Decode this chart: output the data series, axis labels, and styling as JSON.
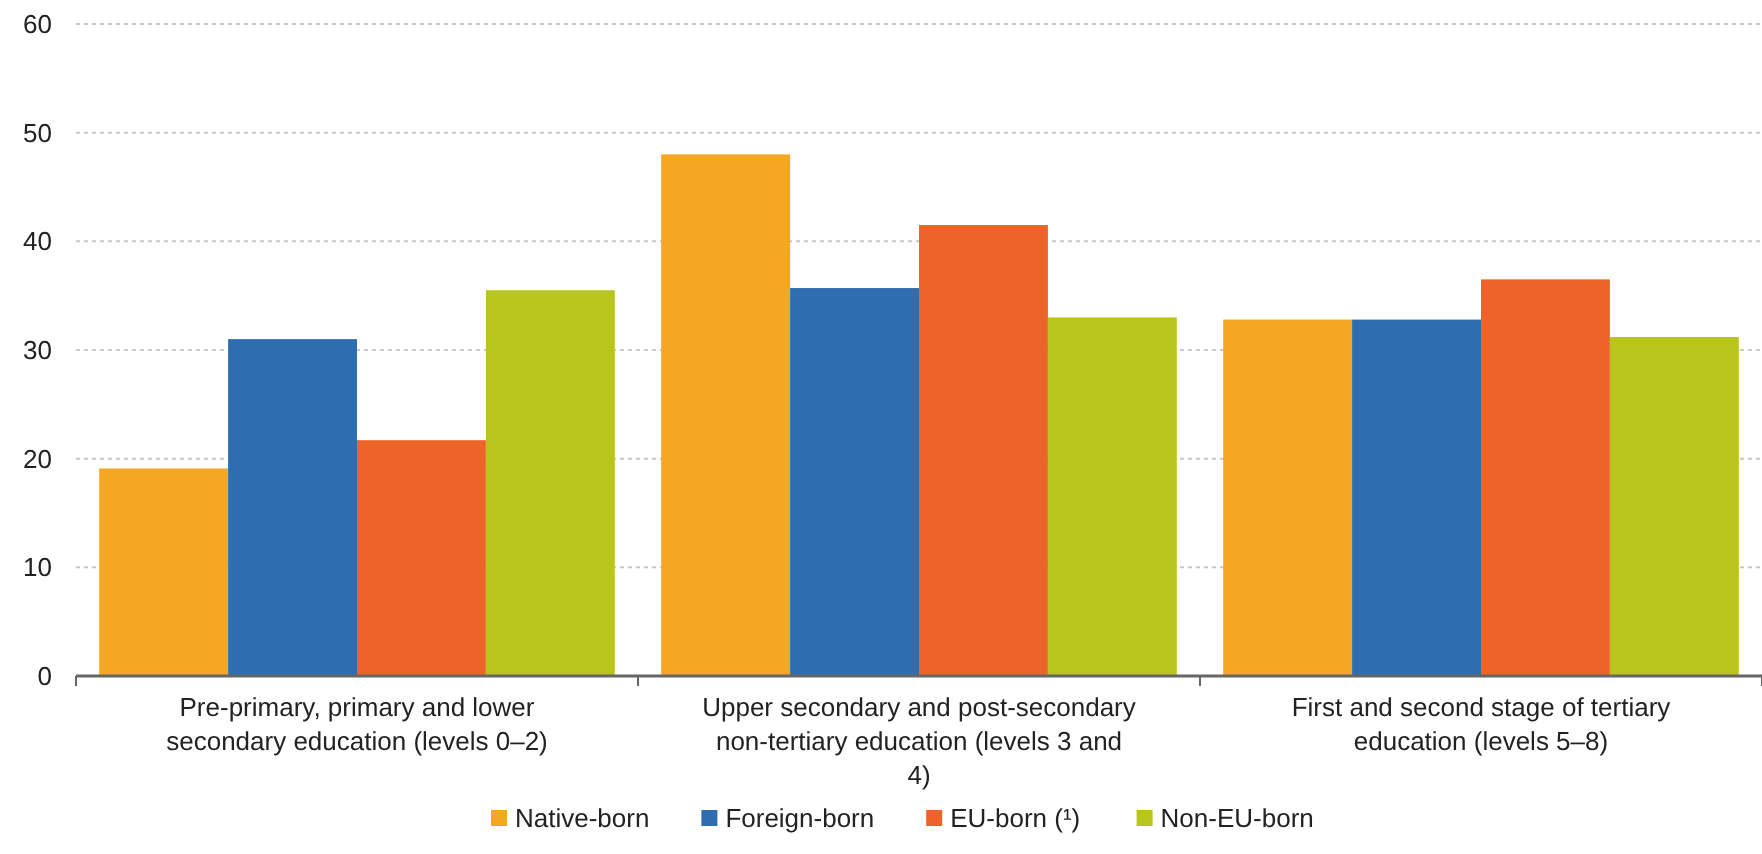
{
  "chart_data": {
    "type": "bar",
    "categories": [
      "Pre-primary, primary and lower secondary education (levels 0–2)",
      "Upper secondary and post-secondary non-tertiary education (levels 3 and 4)",
      "First and second stage of tertiary education (levels 5–8)"
    ],
    "series": [
      {
        "name": "Native-born",
        "color": "#f5a623",
        "values": [
          19.1,
          48.0,
          32.8
        ]
      },
      {
        "name": "Foreign-born",
        "color": "#2e6db0",
        "values": [
          31.0,
          35.7,
          32.8
        ]
      },
      {
        "name": "EU-born (¹)",
        "color": "#ec6427",
        "values": [
          21.7,
          41.5,
          36.5
        ]
      },
      {
        "name": "Non-EU-born",
        "color": "#b8c51c",
        "values": [
          35.5,
          33.0,
          31.2
        ]
      }
    ],
    "ylim": [
      0,
      60
    ],
    "yticks": [
      0,
      10,
      20,
      30,
      40,
      50,
      60
    ],
    "grid": "y",
    "legend": "bottom"
  }
}
